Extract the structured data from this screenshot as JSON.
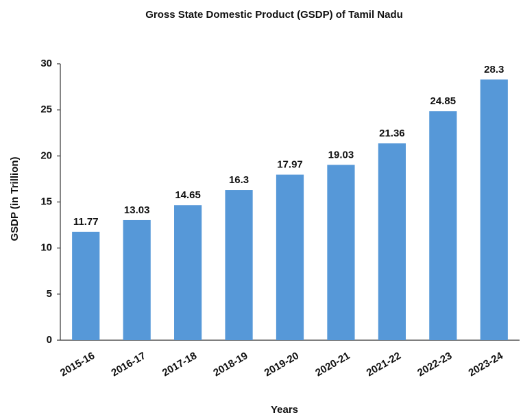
{
  "chart_data": {
    "type": "bar",
    "title": "Gross State Domestic Product (GSDP) of Tamil Nadu",
    "x_label": "Years",
    "y_label": "GSDP (in Trillion)",
    "categories": [
      "2015-16",
      "2016-17",
      "2017-18",
      "2018-19",
      "2019-20",
      "2020-21",
      "2021-22",
      "2022-23",
      "2023-24"
    ],
    "values": [
      11.77,
      13.03,
      14.65,
      16.3,
      17.97,
      19.03,
      21.36,
      24.85,
      28.3
    ],
    "color": "#5698d8",
    "ylim": [
      0,
      30
    ],
    "yticks": [
      0,
      5,
      10,
      15,
      20,
      25,
      30
    ],
    "grid": false
  }
}
